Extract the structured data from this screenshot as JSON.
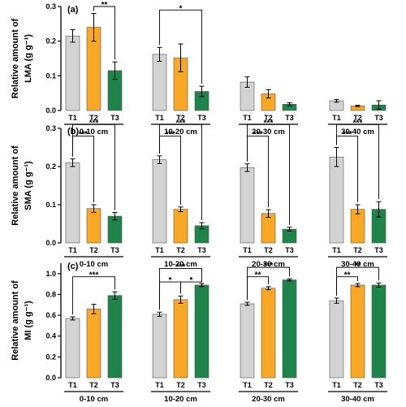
{
  "chart_data": [
    {
      "type": "bar",
      "panel_label": "(a)",
      "ylabel_line1": "Relative amount of",
      "ylabel_line2": "LMA (g g⁻¹)",
      "ylim": [
        0,
        0.3
      ],
      "yticks": [
        0.0,
        0.1,
        0.2,
        0.3
      ],
      "ytick_labels": [
        "0.0",
        "0.1",
        "0.2",
        "0.3"
      ],
      "groups": [
        "0-10 cm",
        "10-20 cm",
        "20-30 cm",
        "30-40 cm"
      ],
      "categories": [
        "T1",
        "T2",
        "T3"
      ],
      "colors": [
        "#d3d3d3",
        "#f9a825",
        "#1e8449"
      ],
      "values": [
        [
          0.215,
          0.24,
          0.115
        ],
        [
          0.162,
          0.152,
          0.055
        ],
        [
          0.082,
          0.048,
          0.018
        ],
        [
          0.028,
          0.013,
          0.016
        ]
      ],
      "errors": [
        [
          0.018,
          0.04,
          0.025
        ],
        [
          0.02,
          0.04,
          0.015
        ],
        [
          0.015,
          0.012,
          0.004
        ],
        [
          0.004,
          0.002,
          0.012
        ]
      ],
      "significance": [
        {
          "group": 0,
          "from": 1,
          "to": 2,
          "y": 0.3,
          "label": "**"
        },
        {
          "group": 1,
          "from": 0,
          "to": 2,
          "y": 0.29,
          "label": "*"
        }
      ]
    },
    {
      "type": "bar",
      "panel_label": "(b)",
      "ylabel_line1": "Relative amount of",
      "ylabel_line2": "SMA (g g⁻¹)",
      "ylim": [
        0,
        0.3
      ],
      "yticks": [
        0.0,
        0.1,
        0.2,
        0.3
      ],
      "ytick_labels": [
        "0.0",
        "0.1",
        "0.2",
        "0.3"
      ],
      "groups": [
        "0-10 cm",
        "10-20 cm",
        "20-30 cm",
        "30-40 cm"
      ],
      "categories": [
        "T1",
        "T2",
        "T3"
      ],
      "colors": [
        "#d3d3d3",
        "#f9a825",
        "#1e8449"
      ],
      "values": [
        [
          0.21,
          0.09,
          0.07
        ],
        [
          0.218,
          0.088,
          0.045
        ],
        [
          0.197,
          0.077,
          0.036
        ],
        [
          0.225,
          0.088,
          0.088
        ]
      ],
      "errors": [
        [
          0.01,
          0.01,
          0.01
        ],
        [
          0.01,
          0.006,
          0.008
        ],
        [
          0.01,
          0.01,
          0.005
        ],
        [
          0.025,
          0.012,
          0.02
        ]
      ],
      "significance": [
        {
          "group": 0,
          "from": 0,
          "to": 1,
          "y": 0.28,
          "label": "***"
        },
        {
          "group": 0,
          "from": 0,
          "to": 2,
          "y": 0.31,
          "label": "***"
        },
        {
          "group": 1,
          "from": 0,
          "to": 1,
          "y": 0.28,
          "label": "***"
        },
        {
          "group": 1,
          "from": 0,
          "to": 2,
          "y": 0.31,
          "label": "***"
        },
        {
          "group": 2,
          "from": 0,
          "to": 1,
          "y": 0.28,
          "label": "***"
        },
        {
          "group": 2,
          "from": 0,
          "to": 2,
          "y": 0.31,
          "label": "***"
        },
        {
          "group": 3,
          "from": 0,
          "to": 1,
          "y": 0.28,
          "label": "***"
        },
        {
          "group": 3,
          "from": 0,
          "to": 2,
          "y": 0.31,
          "label": "***"
        }
      ]
    },
    {
      "type": "bar",
      "panel_label": "(c)",
      "ylabel_line1": "Relative amount of",
      "ylabel_line2": "MI (g g⁻¹)",
      "ylim": [
        0,
        1.1
      ],
      "yticks": [
        0.0,
        0.2,
        0.4,
        0.6,
        0.8,
        1.0
      ],
      "ytick_labels": [
        "0.0",
        "0.2",
        "0.4",
        "0.6",
        "0.8",
        "1.0"
      ],
      "groups": [
        "0-10 cm",
        "10-20 cm",
        "20-30 cm",
        "30-40 cm"
      ],
      "categories": [
        "T1",
        "T2",
        "T3"
      ],
      "colors": [
        "#d3d3d3",
        "#f9a825",
        "#1e8449"
      ],
      "values": [
        [
          0.57,
          0.66,
          0.79
        ],
        [
          0.61,
          0.75,
          0.89
        ],
        [
          0.71,
          0.86,
          0.94
        ],
        [
          0.74,
          0.89,
          0.89
        ]
      ],
      "errors": [
        [
          0.015,
          0.045,
          0.035
        ],
        [
          0.02,
          0.035,
          0.015
        ],
        [
          0.015,
          0.015,
          0.01
        ],
        [
          0.025,
          0.015,
          0.02
        ]
      ],
      "significance": [
        {
          "group": 0,
          "from": 0,
          "to": 2,
          "y": 0.97,
          "label": "***"
        },
        {
          "group": 1,
          "from": 0,
          "to": 1,
          "y": 0.92,
          "label": "*"
        },
        {
          "group": 1,
          "from": 1,
          "to": 2,
          "y": 0.92,
          "label": "*"
        },
        {
          "group": 1,
          "from": 0,
          "to": 2,
          "y": 1.05,
          "label": "***"
        },
        {
          "group": 2,
          "from": 0,
          "to": 1,
          "y": 0.97,
          "label": "**"
        },
        {
          "group": 2,
          "from": 0,
          "to": 2,
          "y": 1.06,
          "label": "***"
        },
        {
          "group": 3,
          "from": 0,
          "to": 1,
          "y": 0.97,
          "label": "**"
        },
        {
          "group": 3,
          "from": 0,
          "to": 2,
          "y": 1.06,
          "label": "**"
        }
      ]
    }
  ]
}
